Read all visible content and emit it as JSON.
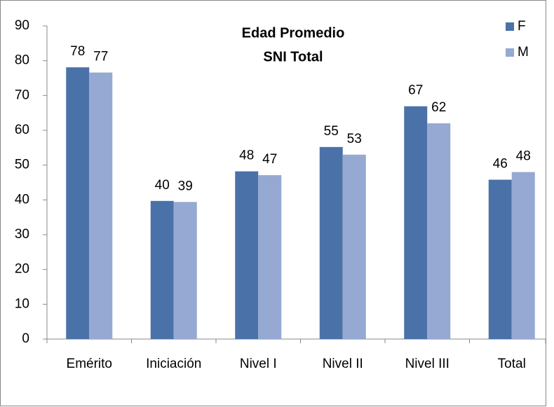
{
  "chart_data": {
    "type": "bar",
    "title": [
      "Edad Promedio",
      "SNI Total"
    ],
    "categories": [
      "Emérito",
      "Iniciación",
      "Nivel I",
      "Nivel II",
      "Nivel III",
      "Total"
    ],
    "series": [
      {
        "name": "F",
        "color": "#4a72a8",
        "values": [
          78.1,
          39.7,
          48.2,
          55.2,
          66.9,
          45.8
        ],
        "value_labels": [
          "78",
          "40",
          "48",
          "55",
          "67",
          "46"
        ]
      },
      {
        "name": "M",
        "color": "#95a9d2",
        "values": [
          76.6,
          39.4,
          47.1,
          53.0,
          62.0,
          48.0
        ],
        "value_labels": [
          "77",
          "39",
          "47",
          "53",
          "62",
          "48"
        ]
      }
    ],
    "ylim": [
      0,
      90
    ],
    "yticks": [
      0,
      10,
      20,
      30,
      40,
      50,
      60,
      70,
      80,
      90
    ],
    "grid": false,
    "legend": "top-right"
  }
}
